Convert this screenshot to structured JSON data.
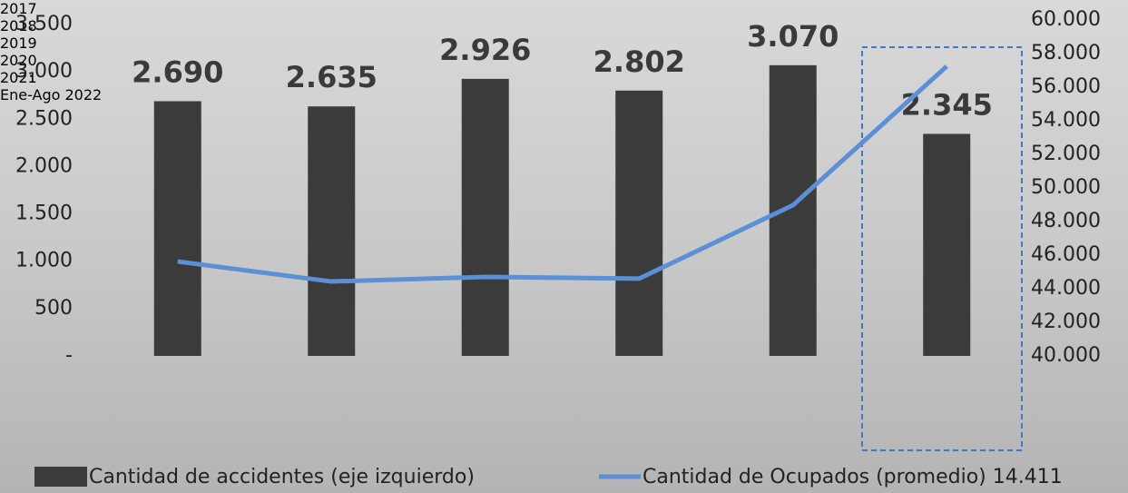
{
  "chart_data": {
    "type": "bar_line",
    "categories": [
      "2017",
      "2018",
      "2019",
      "2020",
      "2021",
      "Ene-Ago 2022"
    ],
    "series": [
      {
        "name": "Cantidad de accidentes (eje izquierdo)",
        "color": "#3b3b3b",
        "type": "bar",
        "values": [
          2690,
          2635,
          2926,
          2802,
          3070,
          2345
        ],
        "value_labels": [
          "2.690",
          "2.635",
          "2.926",
          "2.802",
          "3.070",
          "2.345"
        ]
      },
      {
        "name": "Cantidad de Ocupados (promedio) 14.411",
        "color": "#5b8fd6",
        "type": "line",
        "axis": "y2",
        "values": [
          45620,
          44430,
          44700,
          44600,
          48970,
          57240
        ]
      }
    ],
    "ylim": [
      0,
      3500
    ],
    "yticks": [
      {
        "value": 0,
        "label": "-"
      },
      500,
      {
        "value": 1000,
        "label": "1.000"
      },
      {
        "value": 1500,
        "label": "1.500"
      },
      {
        "value": 2000,
        "label": "2.000"
      },
      {
        "value": 2500,
        "label": "2.500"
      },
      {
        "value": 3000,
        "label": "3.000"
      },
      {
        "value": 3500,
        "label": "3.500"
      }
    ],
    "y2lim": [
      40000,
      60000
    ],
    "y2ticks": [
      {
        "value": 40000,
        "label": "40.000"
      },
      {
        "value": 42000,
        "label": "42.000"
      },
      {
        "value": 44000,
        "label": "44.000"
      },
      {
        "value": 46000,
        "label": "46.000"
      },
      {
        "value": 48000,
        "label": "48.000"
      },
      {
        "value": 50000,
        "label": "50.000"
      },
      {
        "value": 52000,
        "label": "52.000"
      },
      {
        "value": 54000,
        "label": "54.000"
      },
      {
        "value": 56000,
        "label": "56.000"
      },
      {
        "value": 58000,
        "label": "58.000"
      },
      {
        "value": 60000,
        "label": "60.000"
      }
    ],
    "grid": false,
    "legend": "bottom"
  }
}
